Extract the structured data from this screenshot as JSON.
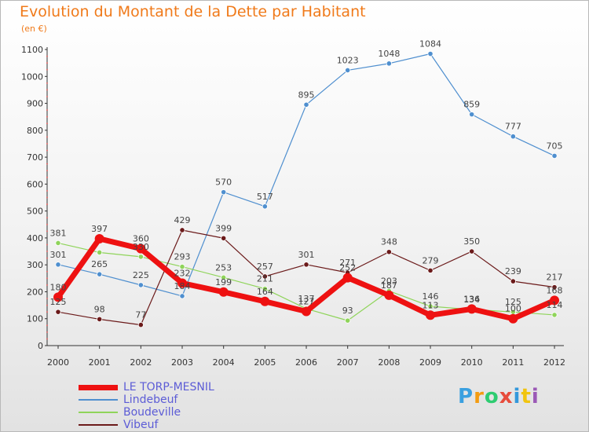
{
  "header": {
    "title": "Evolution du Montant de la Dette par Habitant",
    "unit": "(en €)"
  },
  "logo": {
    "text": "Proxiti",
    "colors": [
      "#3aa0e0",
      "#f39c12",
      "#2ecc71",
      "#e74c3c",
      "#3498db",
      "#f1c40f",
      "#9b59b6"
    ]
  },
  "chart_data": {
    "type": "line",
    "x": [
      "2000",
      "2001",
      "2002",
      "2003",
      "2004",
      "2005",
      "2006",
      "2007",
      "2008",
      "2009",
      "2010",
      "2011",
      "2012"
    ],
    "ylim": [
      0,
      1100
    ],
    "yticks": [
      "0",
      "100",
      "200",
      "300",
      "400",
      "500",
      "600",
      "700",
      "800",
      "900",
      "1000",
      "1100"
    ],
    "grid": false,
    "legend_position": "bottom-left",
    "series": [
      {
        "name": "Lindebeuf",
        "color": "#4f8fcf",
        "stroke": 1.2,
        "marker_r": 3.2,
        "values": [
          301,
          265,
          225,
          184,
          570,
          517,
          895,
          1023,
          1048,
          1084,
          859,
          777,
          705
        ],
        "labels": [
          "301",
          "265",
          "225",
          "184",
          "570",
          "517",
          "895",
          "1023",
          "1048",
          "1084",
          "859",
          "777",
          "705"
        ]
      },
      {
        "name": "Boudeville",
        "color": "#8fd45a",
        "stroke": 1.2,
        "marker_r": 3.2,
        "values": [
          381,
          346,
          330,
          293,
          253,
          211,
          137,
          93,
          203,
          146,
          134,
          125,
          114
        ],
        "labels": [
          "381",
          "",
          "330",
          "293",
          "253",
          "211",
          "137",
          "93",
          "203",
          "146",
          "134",
          "125",
          "114"
        ]
      },
      {
        "name": "Vibeuf",
        "color": "#6b1a1a",
        "stroke": 1.2,
        "marker_r": 3.2,
        "values": [
          125,
          98,
          77,
          429,
          399,
          257,
          301,
          271,
          348,
          279,
          350,
          239,
          217
        ],
        "labels": [
          "125",
          "98",
          "77",
          "429",
          "399",
          "257",
          "301",
          "271",
          "348",
          "279",
          "350",
          "239",
          "217"
        ]
      },
      {
        "name": "LE TORP-MESNIL",
        "color": "#ee1111",
        "stroke": 7,
        "marker_r": 6,
        "values": [
          180,
          397,
          360,
          232,
          199,
          164,
          127,
          252,
          187,
          113,
          136,
          100,
          168
        ],
        "labels": [
          "180",
          "397",
          "360",
          "232",
          "199",
          "164",
          "127",
          "252",
          "187",
          "113",
          "136",
          "100",
          "168"
        ]
      }
    ]
  },
  "legend": [
    {
      "name": "LE TORP-MESNIL",
      "color": "#ee1111"
    },
    {
      "name": "Lindebeuf",
      "color": "#4f8fcf"
    },
    {
      "name": "Boudeville",
      "color": "#8fd45a"
    },
    {
      "name": "Vibeuf",
      "color": "#6b1a1a"
    }
  ]
}
